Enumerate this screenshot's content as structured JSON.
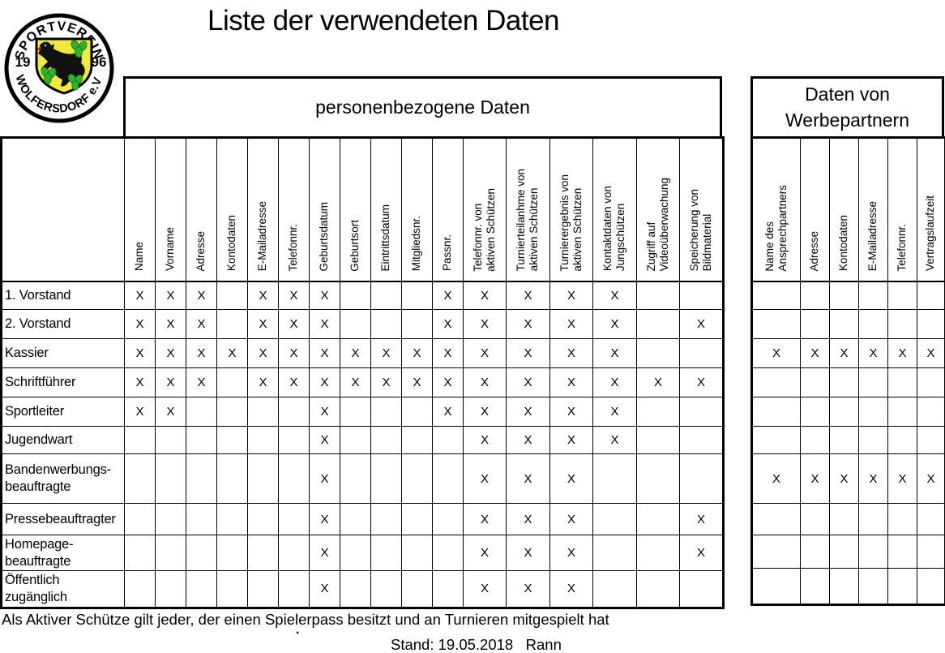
{
  "page": {
    "title": "Liste der verwendeten Daten",
    "footnote": "Als Aktiver Schütze gilt jeder, der einen Spielerpass besitzt und an Turnieren mitgespielt hat",
    "footnote_dot": ".",
    "stand_line": "Stand: 19.05.2018   Rann"
  },
  "logo": {
    "top_text": "SPORTVEREIN",
    "bottom_text": "WOLFERSDORF e.V.",
    "year_left": "19",
    "year_right": "96",
    "colors": {
      "shield": "#f2e93f",
      "leaves": "#2fb32a",
      "leaf_stroke": "#157013",
      "wolf": "#111111",
      "tongue": "#cc2200"
    }
  },
  "mark_char": "X",
  "main_table": {
    "header": "personenbezogene Daten",
    "columns": [
      "Name",
      "Vorname",
      "Adresse",
      "Kontodaten",
      "E-Mailadresse",
      "Telefonnr.",
      "Geburtsdatum",
      "Geburtsort",
      "Eintrittsdatum",
      "Mitgliedsnr.",
      "Passnr.",
      "Telefonnr. von\naktiven Schützen",
      "Turnierteilanhme von\naktiven Schützen",
      "Turnierergebnis von\naktiven Schützen",
      "Kontaktdaten von\nJungschützen",
      "Zugriff auf\nVideoüberwachung",
      "Speicherung von\nBildmaterial"
    ],
    "rows": [
      {
        "label": "1. Vorstand",
        "marks": [
          "X",
          "X",
          "X",
          "",
          "X",
          "X",
          "X",
          "",
          "",
          "",
          "X",
          "X",
          "X",
          "X",
          "X",
          "",
          ""
        ]
      },
      {
        "label": "2. Vorstand",
        "marks": [
          "X",
          "X",
          "X",
          "",
          "X",
          "X",
          "X",
          "",
          "",
          "",
          "X",
          "X",
          "X",
          "X",
          "X",
          "",
          "X"
        ]
      },
      {
        "label": "Kassier",
        "marks": [
          "X",
          "X",
          "X",
          "X",
          "X",
          "X",
          "X",
          "X",
          "X",
          "X",
          "X",
          "X",
          "X",
          "X",
          "X",
          "",
          ""
        ]
      },
      {
        "label": "Schriftführer",
        "marks": [
          "X",
          "X",
          "X",
          "",
          "X",
          "X",
          "X",
          "X",
          "X",
          "X",
          "X",
          "X",
          "X",
          "X",
          "X",
          "X",
          "X"
        ]
      },
      {
        "label": "Sportleiter",
        "marks": [
          "X",
          "X",
          "",
          "",
          "",
          "",
          "X",
          "",
          "",
          "",
          "X",
          "X",
          "X",
          "X",
          "X",
          "",
          ""
        ]
      },
      {
        "label": "Jugendwart",
        "marks": [
          "",
          "",
          "",
          "",
          "",
          "",
          "X",
          "",
          "",
          "",
          "",
          "X",
          "X",
          "X",
          "X",
          "",
          ""
        ]
      },
      {
        "label": "Bandenwerbungs-\nbeauftragte",
        "marks": [
          "",
          "",
          "",
          "",
          "",
          "",
          "X",
          "",
          "",
          "",
          "",
          "X",
          "X",
          "X",
          "",
          "",
          ""
        ]
      },
      {
        "label": "Pressebeauftragter",
        "marks": [
          "",
          "",
          "",
          "",
          "",
          "",
          "X",
          "",
          "",
          "",
          "",
          "X",
          "X",
          "X",
          "",
          "",
          "X"
        ]
      },
      {
        "label": "Homepage-\nbeauftragte",
        "marks": [
          "",
          "",
          "",
          "",
          "",
          "",
          "X",
          "",
          "",
          "",
          "",
          "X",
          "X",
          "X",
          "",
          "",
          "X"
        ]
      },
      {
        "label": "Öffentlich\nzugänglich",
        "marks": [
          "",
          "",
          "",
          "",
          "",
          "",
          "X",
          "",
          "",
          "",
          "",
          "X",
          "X",
          "X",
          "",
          "",
          ""
        ]
      }
    ]
  },
  "partner_table": {
    "header": "Daten von Werbepartnern",
    "columns": [
      "Name des\nAnsprechpartners",
      "Adresse",
      "Kontodaten",
      "E-Mailadresse",
      "Telefonnr.",
      "Vertragslaufzeit"
    ],
    "rows": [
      [
        "",
        "",
        "",
        "",
        "",
        ""
      ],
      [
        "",
        "",
        "",
        "",
        "",
        ""
      ],
      [
        "X",
        "X",
        "X",
        "X",
        "X",
        "X"
      ],
      [
        "",
        "",
        "",
        "",
        "",
        ""
      ],
      [
        "",
        "",
        "",
        "",
        "",
        ""
      ],
      [
        "",
        "",
        "",
        "",
        "",
        ""
      ],
      [
        "X",
        "X",
        "X",
        "X",
        "X",
        "X"
      ],
      [
        "",
        "",
        "",
        "",
        "",
        ""
      ],
      [
        "",
        "",
        "",
        "",
        "",
        ""
      ],
      [
        "",
        "",
        "",
        "",
        "",
        ""
      ]
    ]
  }
}
